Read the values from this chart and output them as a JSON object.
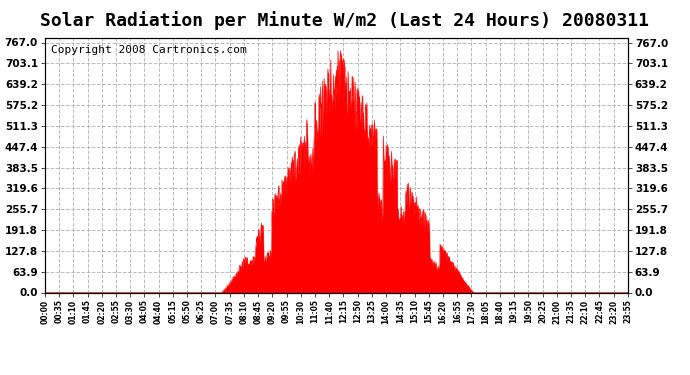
{
  "title": "Solar Radiation per Minute W/m2 (Last 24 Hours) 20080311",
  "copyright": "Copyright 2008 Cartronics.com",
  "yticks": [
    0.0,
    63.9,
    127.8,
    191.8,
    255.7,
    319.6,
    383.5,
    447.4,
    511.3,
    575.2,
    639.2,
    703.1,
    767.0
  ],
  "ymax": 767.0,
  "ymin": 0.0,
  "bar_color": "#FF0000",
  "bg_color": "#FFFFFF",
  "plot_bg_color": "#FFFFFF",
  "grid_color": "#AAAAAA",
  "title_fontsize": 13,
  "copyright_fontsize": 8,
  "xtick_labels": [
    "00:00",
    "00:35",
    "01:10",
    "01:45",
    "02:20",
    "02:55",
    "03:30",
    "04:05",
    "04:40",
    "05:15",
    "05:50",
    "06:25",
    "07:00",
    "07:35",
    "08:10",
    "08:45",
    "09:20",
    "09:55",
    "10:30",
    "11:05",
    "11:40",
    "12:15",
    "12:50",
    "13:25",
    "14:00",
    "14:35",
    "15:10",
    "15:45",
    "16:20",
    "16:55",
    "17:30",
    "18:05",
    "18:40",
    "19:15",
    "19:50",
    "20:25",
    "21:00",
    "21:35",
    "22:10",
    "22:45",
    "23:20",
    "23:55"
  ],
  "n_points": 1440
}
